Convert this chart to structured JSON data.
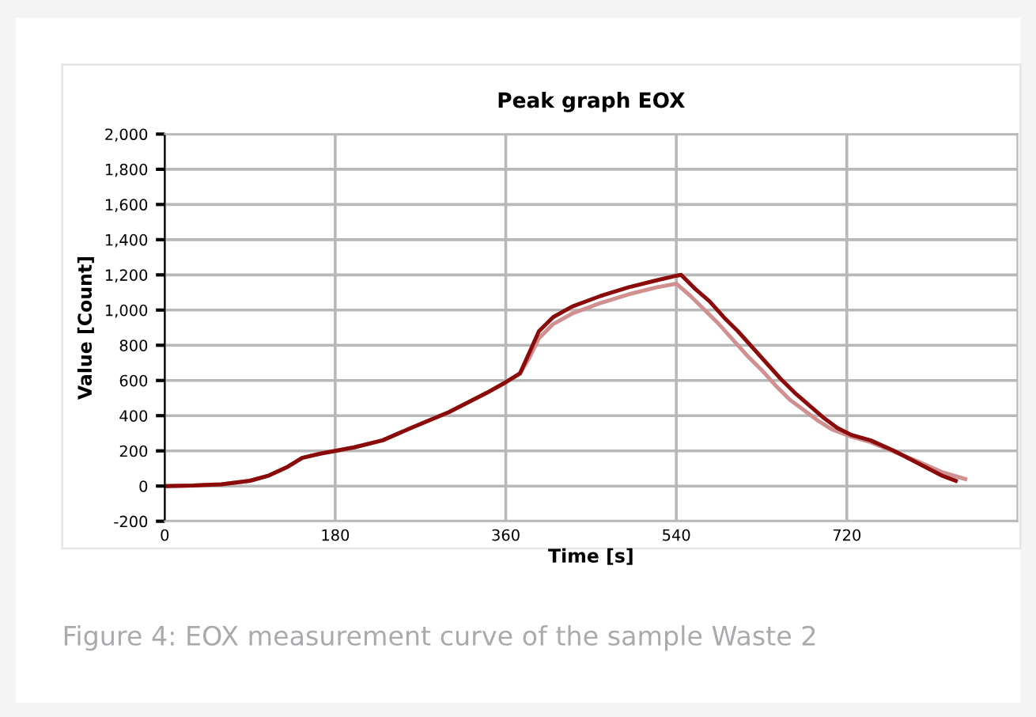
{
  "chart_data": {
    "type": "line",
    "title": "Peak graph EOX",
    "xlabel": "Time [s]",
    "ylabel": "Value [Count]",
    "xlim": [
      0,
      900
    ],
    "xticks": [
      0,
      180,
      360,
      540,
      720
    ],
    "ylim": [
      -200,
      2000
    ],
    "yticks": [
      {
        "value": -200,
        "label": "-200"
      },
      {
        "value": 0,
        "label": "0"
      },
      {
        "value": 200,
        "label": "200"
      },
      {
        "value": 400,
        "label": "400"
      },
      {
        "value": 600,
        "label": "600"
      },
      {
        "value": 800,
        "label": "800"
      },
      {
        "value": 1000,
        "label": "1,000"
      },
      {
        "value": 1200,
        "label": "1,200"
      },
      {
        "value": 1400,
        "label": "1,400"
      },
      {
        "value": 1600,
        "label": "1,600"
      },
      {
        "value": 1800,
        "label": "1,800"
      },
      {
        "value": 2000,
        "label": "2,000"
      }
    ],
    "grid": true,
    "legend": false,
    "marker": "none",
    "line_style": "solid",
    "annotations": [
      "Figure 4: EOX measurement curve of the sample Waste 2"
    ],
    "series": [
      {
        "color": "#d09090",
        "x": [
          0,
          30,
          60,
          90,
          110,
          130,
          145,
          165,
          180,
          200,
          230,
          260,
          300,
          340,
          360,
          375,
          385,
          395,
          410,
          430,
          460,
          490,
          520,
          540,
          555,
          570,
          585,
          600,
          615,
          630,
          645,
          660,
          675,
          690,
          705,
          725,
          745,
          770,
          795,
          820,
          845
        ],
        "values": [
          0,
          3,
          10,
          30,
          60,
          110,
          160,
          185,
          200,
          220,
          260,
          330,
          420,
          530,
          590,
          640,
          730,
          840,
          920,
          980,
          1040,
          1090,
          1130,
          1150,
          1080,
          1000,
          920,
          830,
          740,
          660,
          570,
          490,
          430,
          370,
          320,
          280,
          250,
          195,
          140,
          80,
          40
        ]
      },
      {
        "color": "#8b0a0a",
        "x": [
          0,
          30,
          60,
          90,
          110,
          130,
          145,
          165,
          180,
          200,
          230,
          260,
          300,
          340,
          360,
          375,
          385,
          395,
          410,
          430,
          460,
          490,
          520,
          540,
          545,
          560,
          575,
          590,
          605,
          620,
          635,
          650,
          665,
          680,
          695,
          710,
          725,
          745,
          770,
          795,
          820,
          835
        ],
        "values": [
          0,
          3,
          10,
          30,
          60,
          110,
          160,
          185,
          200,
          220,
          260,
          330,
          420,
          530,
          590,
          640,
          760,
          880,
          960,
          1020,
          1080,
          1130,
          1170,
          1195,
          1200,
          1120,
          1050,
          960,
          880,
          790,
          700,
          610,
          530,
          460,
          390,
          330,
          290,
          260,
          200,
          130,
          60,
          30
        ]
      }
    ]
  }
}
